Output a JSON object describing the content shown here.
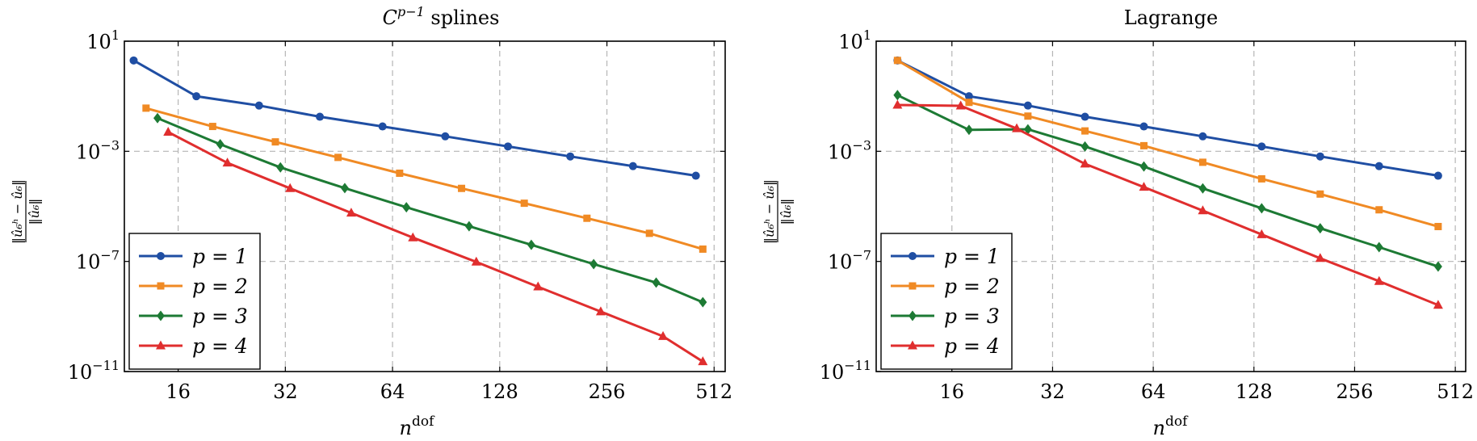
{
  "chart_data": [
    {
      "type": "line",
      "title_base": "C",
      "title_sup": "p−1",
      "title_rest": " splines",
      "xlabel_base": "n",
      "xlabel_sup": "dof",
      "ylabel_num": "‖û₆ʰ − û₆‖",
      "ylabel_den": "‖û₆‖",
      "x_scale": "log2",
      "y_scale": "log10",
      "xlim": [
        11.3,
        550
      ],
      "ylim": [
        1e-11,
        10
      ],
      "xticks": [
        16,
        32,
        64,
        128,
        256,
        512
      ],
      "xtick_labels": [
        "16",
        "32",
        "64",
        "128",
        "256",
        "512"
      ],
      "yticks": [
        {
          "base": "10",
          "exp": "1",
          "value": 10
        },
        {
          "base": "10",
          "exp": "−3",
          "value": 0.001
        },
        {
          "base": "10",
          "exp": "−7",
          "value": 1e-07
        },
        {
          "base": "10",
          "exp": "−11",
          "value": 1e-11
        }
      ],
      "grid": true,
      "legend_position": "bottom-left",
      "series": [
        {
          "name": "p = 1",
          "color": "#1f4ea3",
          "marker": "circle",
          "x": [
            12,
            18,
            27,
            40,
            60,
            90,
            135,
            202,
            303,
            455
          ],
          "y": [
            2.0,
            0.1,
            0.046,
            0.018,
            0.008,
            0.0035,
            0.0015,
            0.00065,
            0.00029,
            0.00013
          ]
        },
        {
          "name": "p = 2",
          "color": "#f08a24",
          "marker": "square",
          "x": [
            13,
            20,
            30,
            45,
            67,
            100,
            150,
            225,
            337,
            476
          ],
          "y": [
            0.037,
            0.008,
            0.0022,
            0.0006,
            0.00016,
            4.5e-05,
            1.3e-05,
            3.7e-06,
            1.05e-06,
            2.8e-07
          ]
        },
        {
          "name": "p = 3",
          "color": "#1d7a34",
          "marker": "diamond",
          "x": [
            14,
            21,
            31,
            47,
            70,
            105,
            157,
            235,
            352,
            476
          ],
          "y": [
            0.016,
            0.0018,
            0.00026,
            4.6e-05,
            9.3e-06,
            1.9e-06,
            4e-07,
            8e-08,
            1.7e-08,
            3.3e-09
          ]
        },
        {
          "name": "p = 4",
          "color": "#e02e2e",
          "marker": "triangle",
          "x": [
            15,
            22,
            33,
            49,
            73,
            110,
            164,
            246,
            368,
            476
          ],
          "y": [
            0.005,
            0.00038,
            4.5e-05,
            5.8e-06,
            7.3e-07,
            9.6e-08,
            1.2e-08,
            1.5e-09,
            1.9e-10,
            2.3e-11
          ]
        }
      ]
    },
    {
      "type": "line",
      "title_base": "Lagrange",
      "title_sup": "",
      "title_rest": "",
      "xlabel_base": "n",
      "xlabel_sup": "dof",
      "ylabel_num": "‖û₆ʰ − û₆‖",
      "ylabel_den": "‖û₆‖",
      "x_scale": "log2",
      "y_scale": "log10",
      "xlim": [
        9.5,
        550
      ],
      "ylim": [
        1e-11,
        10
      ],
      "xticks": [
        16,
        32,
        64,
        128,
        256,
        512
      ],
      "xtick_labels": [
        "16",
        "32",
        "64",
        "128",
        "256",
        "512"
      ],
      "yticks": [
        {
          "base": "10",
          "exp": "1",
          "value": 10
        },
        {
          "base": "10",
          "exp": "−3",
          "value": 0.001
        },
        {
          "base": "10",
          "exp": "−7",
          "value": 1e-07
        },
        {
          "base": "10",
          "exp": "−11",
          "value": 1e-11
        }
      ],
      "grid": true,
      "legend_position": "bottom-left",
      "series": [
        {
          "name": "p = 1",
          "color": "#1f4ea3",
          "marker": "circle",
          "x": [
            11,
            18,
            27,
            40,
            60,
            90,
            135,
            202,
            303,
            455
          ],
          "y": [
            2.0,
            0.1,
            0.046,
            0.018,
            0.008,
            0.0035,
            0.0015,
            0.00065,
            0.00029,
            0.00013
          ]
        },
        {
          "name": "p = 2",
          "color": "#f08a24",
          "marker": "square",
          "x": [
            11,
            18,
            27,
            40,
            60,
            90,
            135,
            202,
            303,
            455
          ],
          "y": [
            2.0,
            0.06,
            0.019,
            0.0055,
            0.0016,
            0.0004,
            0.0001,
            2.8e-05,
            7.5e-06,
            1.85e-06
          ]
        },
        {
          "name": "p = 3",
          "color": "#1d7a34",
          "marker": "diamond",
          "x": [
            11,
            18,
            27,
            40,
            60,
            90,
            135,
            202,
            303,
            455
          ],
          "y": [
            0.11,
            0.006,
            0.0063,
            0.0015,
            0.00028,
            4.5e-05,
            8.5e-06,
            1.6e-06,
            3.3e-07,
            6.5e-08
          ]
        },
        {
          "name": "p = 4",
          "color": "#e02e2e",
          "marker": "triangle",
          "x": [
            11,
            17,
            25,
            40,
            60,
            90,
            135,
            202,
            303,
            455
          ],
          "y": [
            0.048,
            0.045,
            0.0067,
            0.00035,
            5e-05,
            7e-06,
            9.5e-07,
            1.3e-07,
            1.9e-08,
            2.6e-09
          ]
        }
      ]
    }
  ]
}
